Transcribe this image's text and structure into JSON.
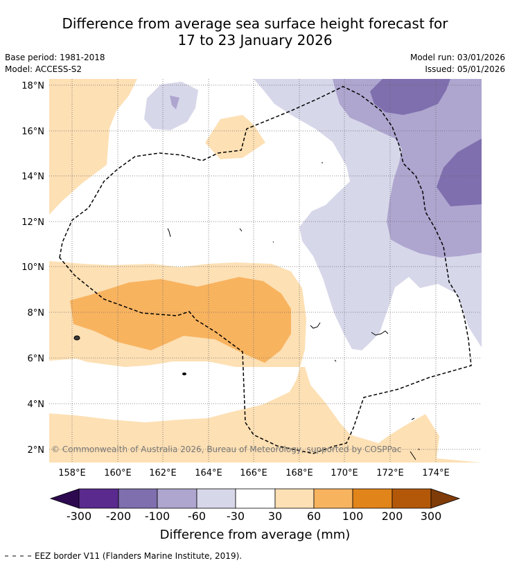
{
  "title": {
    "line1": "Difference from average sea surface height forecast for",
    "line2": "17 to 23 January 2026"
  },
  "meta": {
    "base_period": "Base period: 1981-2018",
    "model": "Model: ACCESS-S2",
    "model_run": "Model run: 03/01/2026",
    "issued": "Issued: 05/01/2026"
  },
  "map": {
    "lat_ticks": [
      "18°N",
      "16°N",
      "14°N",
      "12°N",
      "10°N",
      "8°N",
      "6°N",
      "4°N",
      "2°N"
    ],
    "lon_ticks": [
      "158°E",
      "160°E",
      "162°E",
      "164°E",
      "166°E",
      "168°E",
      "170°E",
      "172°E",
      "174°E"
    ],
    "copyright": "© Commonwealth of Australia 2026, Bureau of Meteorology, supported by COSPPac"
  },
  "colorbar": {
    "ticks": [
      "-300",
      "-200",
      "-100",
      "-60",
      "-30",
      "30",
      "60",
      "100",
      "200",
      "300"
    ],
    "colors": [
      "#2d0a50",
      "#5a2a8e",
      "#7f6fae",
      "#aea6cf",
      "#d7d7ea",
      "#ffffff",
      "#fde0b4",
      "#f8b35f",
      "#e1841a",
      "#b35809",
      "#7f3b08"
    ],
    "label": "Difference from average (mm)"
  },
  "legend_note": "EEZ border V11 (Flanders Marine Institute, 2019)."
}
